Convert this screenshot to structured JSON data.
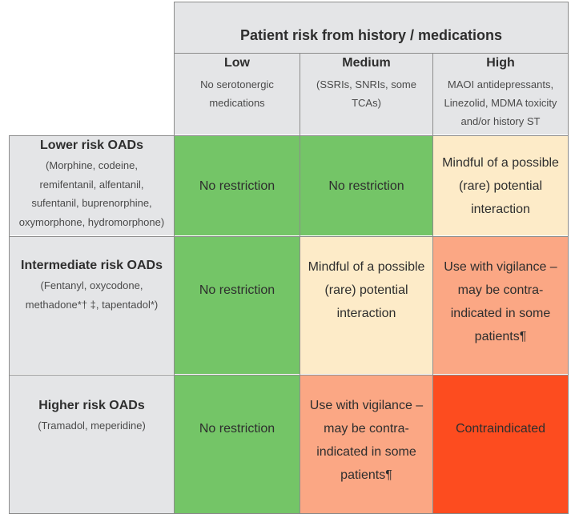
{
  "table": {
    "header_title": "Patient risk from history / medications",
    "columns": [
      {
        "title": "Low",
        "lines": [
          "No serotonergic",
          "medications"
        ]
      },
      {
        "title": "Medium",
        "lines": [
          "(SSRIs, SNRIs, some",
          "TCAs)"
        ]
      },
      {
        "title": "High",
        "lines": [
          "MAOI antidepressants,",
          "Linezolid, MDMA toxicity",
          "and/or history ST"
        ]
      }
    ],
    "rows": [
      {
        "title": "Lower risk OADs",
        "lines": [
          "(Morphine, codeine,",
          "remifentanil, alfentanil,",
          "sufentanil, buprenorphine,",
          "oxymorphone, hydromorphone)"
        ],
        "cells": [
          {
            "lines": [
              "No restriction"
            ],
            "level": "none"
          },
          {
            "lines": [
              "No restriction"
            ],
            "level": "none"
          },
          {
            "lines": [
              "Mindful of a possible",
              "(rare) potential",
              "interaction"
            ],
            "level": "mindful"
          }
        ]
      },
      {
        "title": "Intermediate risk OADs",
        "lines": [
          "(Fentanyl, oxycodone,",
          "methadone*† ‡, tapentadol*)"
        ],
        "cells": [
          {
            "lines": [
              "No restriction"
            ],
            "level": "none"
          },
          {
            "lines": [
              "Mindful of a possible",
              "(rare) potential",
              "interaction"
            ],
            "level": "mindful"
          },
          {
            "lines": [
              "Use with vigilance –",
              "may be contra-",
              "indicated in some",
              "patients¶"
            ],
            "level": "vigilance"
          }
        ]
      },
      {
        "title": "Higher risk OADs",
        "lines": [
          "(Tramadol, meperidine)"
        ],
        "cells": [
          {
            "lines": [
              "No restriction"
            ],
            "level": "none"
          },
          {
            "lines": [
              "Use with vigilance –",
              "may be contra-",
              "indicated in some",
              "patients¶"
            ],
            "level": "vigilance"
          },
          {
            "lines": [
              "Contraindicated"
            ],
            "level": "contraindicated"
          }
        ]
      }
    ]
  },
  "colors": {
    "header_gray": "#e4e5e7",
    "none": "#74c567",
    "mindful": "#fdebc8",
    "vigilance": "#fba784",
    "contraindicated": "#fd4c1f",
    "grid_line": "#8c8c8c"
  }
}
